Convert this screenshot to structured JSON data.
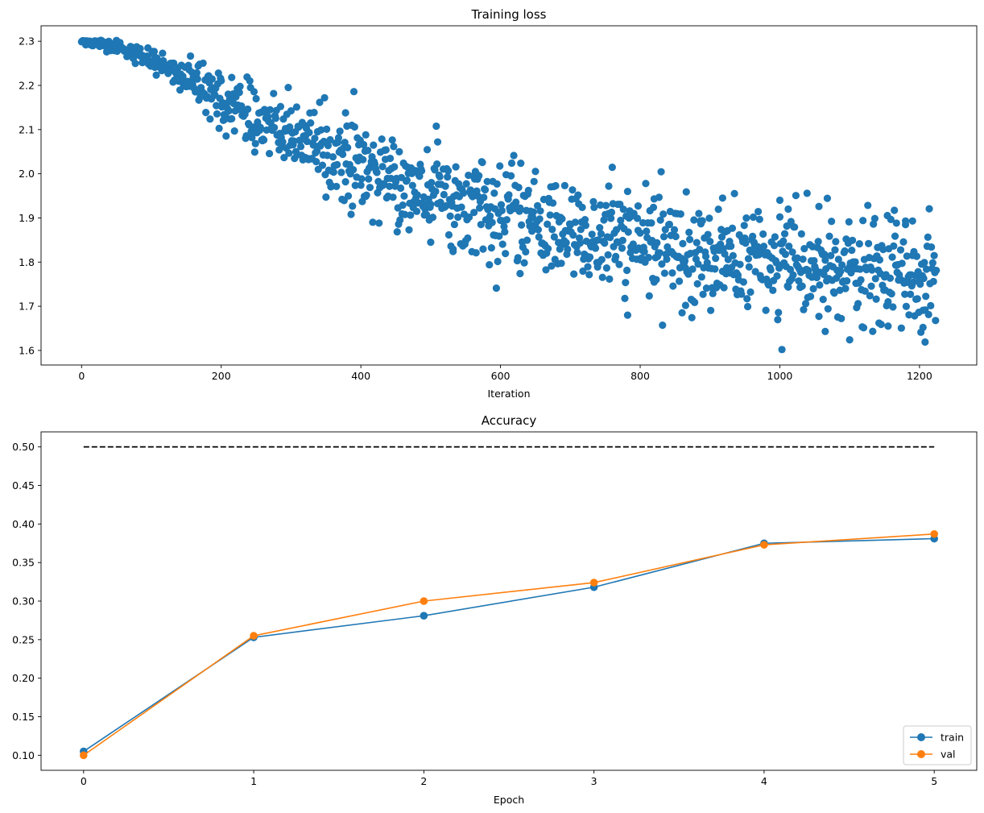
{
  "chart_data": [
    {
      "type": "scatter",
      "title": "Training loss",
      "xlabel": "Iteration",
      "ylabel": "",
      "xlim": [
        -58,
        1282
      ],
      "ylim": [
        1.567,
        2.335
      ],
      "xticks": [
        0,
        200,
        400,
        600,
        800,
        1000,
        1200
      ],
      "xtick_labels": [
        "0",
        "200",
        "400",
        "600",
        "800",
        "1000",
        "1200"
      ],
      "yticks": [
        1.6,
        1.7,
        1.8,
        1.9,
        2.0,
        2.1,
        2.2,
        2.3
      ],
      "ytick_labels": [
        "1.6",
        "1.7",
        "1.8",
        "1.9",
        "2.0",
        "2.1",
        "2.2",
        "2.3"
      ],
      "color": "#1f77b4",
      "n_points": 1225,
      "trend": {
        "x": [
          0,
          50,
          100,
          150,
          200,
          300,
          400,
          500,
          600,
          700,
          800,
          900,
          1000,
          1100,
          1224
        ],
        "y": [
          2.3,
          2.29,
          2.26,
          2.215,
          2.165,
          2.085,
          2.01,
          1.955,
          1.91,
          1.865,
          1.835,
          1.815,
          1.795,
          1.775,
          1.762
        ]
      },
      "noise_spread": {
        "x": [
          0,
          60,
          120,
          200,
          400,
          700,
          1000,
          1224
        ],
        "y": [
          0.004,
          0.008,
          0.015,
          0.03,
          0.045,
          0.055,
          0.06,
          0.062
        ]
      },
      "outliers": [
        {
          "x": 215,
          "y": 2.218
        },
        {
          "x": 378,
          "y": 2.138
        },
        {
          "x": 407,
          "y": 2.088
        },
        {
          "x": 510,
          "y": 2.072
        },
        {
          "x": 500,
          "y": 1.845
        },
        {
          "x": 532,
          "y": 1.824
        },
        {
          "x": 565,
          "y": 1.821
        },
        {
          "x": 628,
          "y": 1.774
        },
        {
          "x": 755,
          "y": 1.972
        },
        {
          "x": 782,
          "y": 1.96
        },
        {
          "x": 797,
          "y": 1.927
        },
        {
          "x": 820,
          "y": 1.943
        },
        {
          "x": 865,
          "y": 1.702
        },
        {
          "x": 918,
          "y": 1.945
        },
        {
          "x": 1003,
          "y": 1.602
        },
        {
          "x": 1000,
          "y": 1.94
        },
        {
          "x": 1012,
          "y": 1.92
        },
        {
          "x": 1056,
          "y": 1.926
        },
        {
          "x": 1065,
          "y": 1.643
        },
        {
          "x": 1100,
          "y": 1.624
        },
        {
          "x": 1180,
          "y": 1.893
        },
        {
          "x": 1190,
          "y": 1.893
        },
        {
          "x": 1205,
          "y": 1.652
        },
        {
          "x": 1208,
          "y": 1.619
        },
        {
          "x": 1155,
          "y": 1.655
        }
      ]
    },
    {
      "type": "line",
      "title": "Accuracy",
      "xlabel": "Epoch",
      "ylabel": "",
      "xlim": [
        -0.25,
        5.25
      ],
      "ylim": [
        0.0805,
        0.5195
      ],
      "xticks": [
        0,
        1,
        2,
        3,
        4,
        5
      ],
      "xtick_labels": [
        "0",
        "1",
        "2",
        "3",
        "4",
        "5"
      ],
      "yticks": [
        0.1,
        0.15,
        0.2,
        0.25,
        0.3,
        0.35,
        0.4,
        0.45,
        0.5
      ],
      "ytick_labels": [
        "0.10",
        "0.15",
        "0.20",
        "0.25",
        "0.30",
        "0.35",
        "0.40",
        "0.45",
        "0.50"
      ],
      "x": [
        0,
        1,
        2,
        3,
        4,
        5
      ],
      "series": [
        {
          "name": "train",
          "values": [
            0.105,
            0.253,
            0.281,
            0.318,
            0.375,
            0.381
          ],
          "color": "#1f77b4"
        },
        {
          "name": "val",
          "values": [
            0.1,
            0.255,
            0.3,
            0.324,
            0.373,
            0.387
          ],
          "color": "#ff7f0e"
        }
      ],
      "reference_line": {
        "y": 0.5,
        "x_range": [
          0,
          5
        ],
        "style": "dashed",
        "color": "#000000"
      },
      "legend_position": "lower-right"
    }
  ]
}
